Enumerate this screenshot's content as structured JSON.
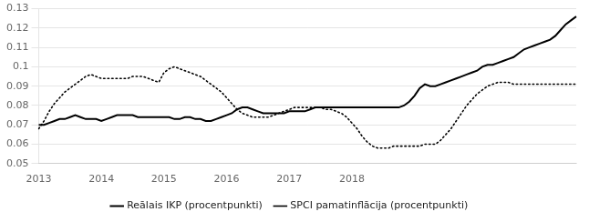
{
  "chart_data": {
    "type": "line",
    "categories": [
      "2013",
      null,
      null,
      null,
      null,
      null,
      null,
      null,
      null,
      null,
      null,
      null,
      "2014",
      null,
      null,
      null,
      null,
      null,
      null,
      null,
      null,
      null,
      null,
      null,
      "2015",
      null,
      null,
      null,
      null,
      null,
      null,
      null,
      null,
      null,
      null,
      null,
      "2016",
      null,
      null,
      null,
      null,
      null,
      null,
      null,
      null,
      null,
      null,
      null,
      "2017",
      null,
      null,
      null,
      null,
      null,
      null,
      null,
      null,
      null,
      null,
      null,
      "2018",
      null,
      null,
      null,
      null,
      null,
      null,
      null,
      null,
      null,
      null,
      null,
      null,
      null,
      null,
      null,
      null,
      null,
      null,
      null,
      null,
      null,
      null,
      null,
      null,
      null,
      null,
      null,
      null,
      null,
      null,
      null,
      null,
      null,
      null,
      null,
      null,
      null,
      null,
      null,
      null,
      null,
      null,
      null
    ],
    "series": [
      {
        "name": "Reālais IKP (procentpunkti)",
        "color": "#000000",
        "line_style": "solid",
        "values": [
          0.07,
          0.07,
          0.071,
          0.072,
          0.073,
          0.073,
          0.074,
          0.075,
          0.074,
          0.073,
          0.073,
          0.073,
          0.072,
          0.073,
          0.074,
          0.075,
          0.075,
          0.075,
          0.075,
          0.074,
          0.074,
          0.074,
          0.074,
          0.074,
          0.074,
          0.074,
          0.073,
          0.073,
          0.074,
          0.074,
          0.073,
          0.073,
          0.072,
          0.072,
          0.073,
          0.074,
          0.075,
          0.076,
          0.078,
          0.079,
          0.079,
          0.078,
          0.077,
          0.076,
          0.076,
          0.076,
          0.076,
          0.076,
          0.077,
          0.077,
          0.077,
          0.077,
          0.078,
          0.079,
          0.079,
          0.079,
          0.079,
          0.079,
          0.079,
          0.079,
          0.079,
          0.079,
          0.079,
          0.079,
          0.079,
          0.079,
          0.079,
          0.079,
          0.079,
          0.079,
          0.08,
          0.082,
          0.085,
          0.089,
          0.091,
          0.09,
          0.09,
          0.091,
          0.092,
          0.093,
          0.094,
          0.095,
          0.096,
          0.097,
          0.098,
          0.1,
          0.101,
          0.101,
          0.102,
          0.103,
          0.104,
          0.105,
          0.107,
          0.109,
          0.11,
          0.111,
          0.112,
          0.113,
          0.114,
          0.116,
          0.119,
          0.122,
          0.124,
          0.126
        ]
      },
      {
        "name": "SPCI pamatinflācija (procentpunkti)",
        "color": "#000000",
        "line_style": "dotted",
        "values": [
          0.068,
          0.072,
          0.077,
          0.081,
          0.084,
          0.087,
          0.089,
          0.091,
          0.093,
          0.095,
          0.096,
          0.095,
          0.094,
          0.094,
          0.094,
          0.094,
          0.094,
          0.094,
          0.095,
          0.095,
          0.095,
          0.094,
          0.093,
          0.092,
          0.097,
          0.099,
          0.1,
          0.099,
          0.098,
          0.097,
          0.096,
          0.095,
          0.093,
          0.091,
          0.089,
          0.087,
          0.084,
          0.081,
          0.078,
          0.076,
          0.075,
          0.074,
          0.074,
          0.074,
          0.074,
          0.075,
          0.076,
          0.077,
          0.078,
          0.079,
          0.079,
          0.079,
          0.079,
          0.079,
          0.079,
          0.078,
          0.078,
          0.077,
          0.076,
          0.074,
          0.071,
          0.068,
          0.064,
          0.061,
          0.059,
          0.058,
          0.058,
          0.058,
          0.059,
          0.059,
          0.059,
          0.059,
          0.059,
          0.059,
          0.06,
          0.06,
          0.06,
          0.062,
          0.065,
          0.068,
          0.072,
          0.076,
          0.08,
          0.083,
          0.086,
          0.088,
          0.09,
          0.091,
          0.092,
          0.092,
          0.092,
          0.091,
          0.091,
          0.091,
          0.091,
          0.091,
          0.091,
          0.091,
          0.091,
          0.091,
          0.091,
          0.091,
          0.091,
          0.091
        ]
      }
    ],
    "ylim": [
      0.05,
      0.13
    ],
    "yticks": [
      0.05,
      0.06,
      0.07,
      0.08,
      0.09,
      0.1,
      0.11,
      0.12,
      0.13
    ],
    "grid": "y",
    "legend": "bottom"
  }
}
